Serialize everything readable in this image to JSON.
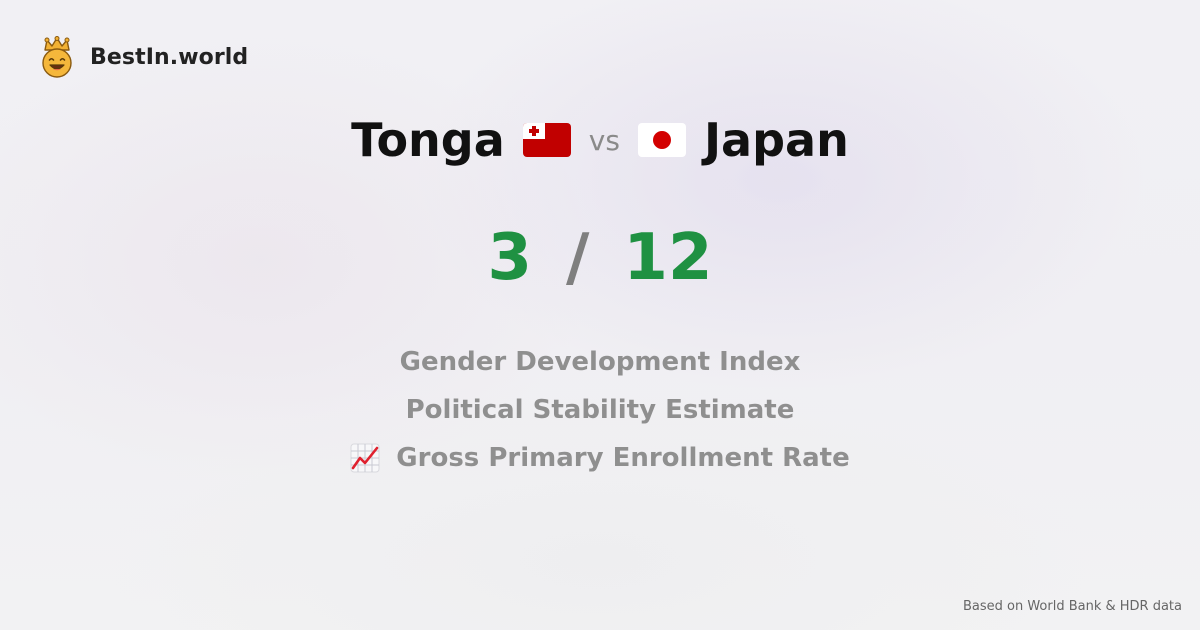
{
  "brand": {
    "name": "BestIn.world",
    "logo_icon": "crown-smiley-icon"
  },
  "comparison": {
    "country_a": {
      "name": "Tonga",
      "flag_icon": "tonga-flag-icon"
    },
    "separator": "vs",
    "country_b": {
      "name": "Japan",
      "flag_icon": "japan-flag-icon"
    }
  },
  "score": {
    "a": "3",
    "separator": "/",
    "b": "12",
    "color": "#1f9142"
  },
  "metrics": [
    {
      "label": "Gender Development Index"
    },
    {
      "label": "Political Stability Estimate"
    },
    {
      "label": "Gross Primary Enrollment Rate",
      "icon": "chart-increasing-icon"
    }
  ],
  "footer": {
    "source_note": "Based on World Bank & HDR data"
  }
}
